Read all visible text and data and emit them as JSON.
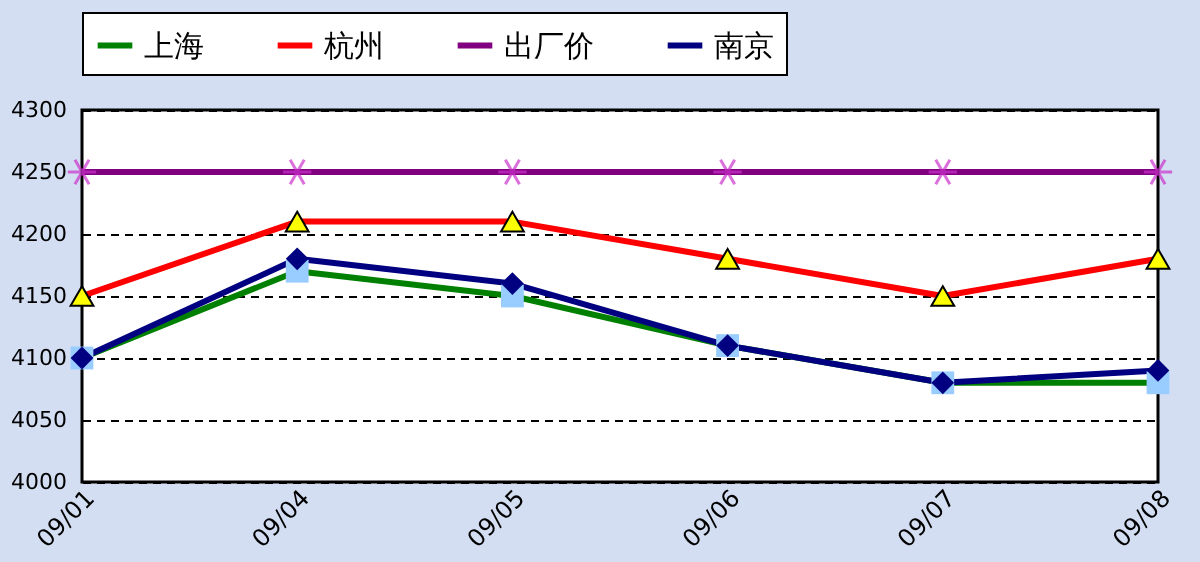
{
  "chart_data": {
    "type": "line",
    "categories": [
      "09/01",
      "09/04",
      "09/05",
      "09/06",
      "09/07",
      "09/08"
    ],
    "series": [
      {
        "name": "上海",
        "color": "#008000",
        "marker": "square",
        "colors": [
          "#99ccff",
          "#99ccff",
          "#99ccff",
          "#99ccff",
          "#99ccff",
          "#99ccff"
        ],
        "values": [
          4100,
          4170,
          4150,
          4110,
          4080,
          4080
        ]
      },
      {
        "name": "杭州",
        "color": "#ff0000",
        "marker": "triangle",
        "colors": [
          "#ffff00",
          "#ffff00",
          "#ffff00",
          "#ffff00",
          "#ffff00",
          "#ffff00"
        ],
        "values": [
          4150,
          4210,
          4210,
          4180,
          4150,
          4180
        ]
      },
      {
        "name": "出厂价",
        "color": "#800080",
        "marker": "cross",
        "colors": [
          "#cc33cc",
          "#cc33cc",
          "#cc33cc",
          "#cc33cc",
          "#cc33cc",
          "#cc33cc"
        ],
        "values": [
          4250,
          4250,
          4250,
          4250,
          4250,
          4250
        ]
      },
      {
        "name": "南京",
        "color": "#000080",
        "marker": "diamond",
        "colors": [
          "#000080",
          "#000080",
          "#000080",
          "#000080",
          "#000080",
          "#000080"
        ],
        "values": [
          4100,
          4180,
          4160,
          4110,
          4080,
          4090
        ]
      }
    ],
    "ylim": [
      4000,
      4300
    ],
    "yticks": [
      4000,
      4050,
      4100,
      4150,
      4200,
      4250,
      4300
    ],
    "grid": "y",
    "line_style": "solid",
    "legend": "top"
  }
}
